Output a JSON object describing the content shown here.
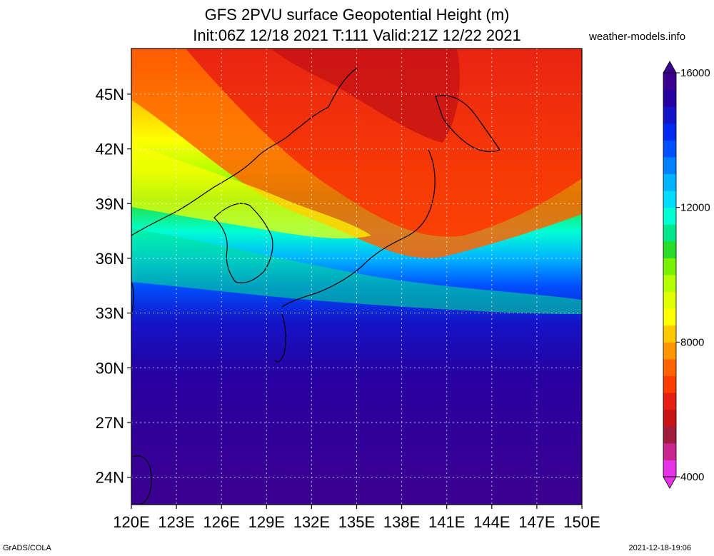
{
  "title_line1": "GFS 2PVU surface Geopotential Height (m)",
  "title_line2": "Init:06Z 12/18 2021 T:111 Valid:21Z 12/22 2021",
  "credit": "weather-models.info",
  "footer_left": "GrADS/COLA",
  "footer_right": "2021-12-18-19:06",
  "map": {
    "lon_range": [
      120,
      150
    ],
    "lat_range": [
      22.5,
      47.5
    ],
    "lon_ticks": [
      "120E",
      "123E",
      "126E",
      "129E",
      "132E",
      "135E",
      "138E",
      "141E",
      "144E",
      "147E",
      "150E"
    ],
    "lat_ticks": [
      "45N",
      "42N",
      "39N",
      "36N",
      "33N",
      "30N",
      "27N",
      "24N"
    ],
    "lon_tick_values": [
      120,
      123,
      126,
      129,
      132,
      135,
      138,
      141,
      144,
      147,
      150
    ],
    "lat_tick_values": [
      45,
      42,
      39,
      36,
      33,
      30,
      27,
      24
    ],
    "grid": true
  },
  "colorbar": {
    "min": 4000,
    "max": 16000,
    "labels": [
      "16000",
      "12000",
      "8000",
      "4000"
    ],
    "label_values": [
      16000,
      12000,
      8000,
      4000
    ],
    "colors": [
      "#e633e6",
      "#c8268c",
      "#a01e3c",
      "#c81414",
      "#e61e14",
      "#ff3c00",
      "#ff6400",
      "#ff9600",
      "#ffc800",
      "#ffff00",
      "#e1ff00",
      "#b4ff00",
      "#78f000",
      "#28dc28",
      "#00e68c",
      "#00ffd2",
      "#00dcff",
      "#00b4ff",
      "#0082ff",
      "#0050ff",
      "#0028f0",
      "#1414c8",
      "#2800a0",
      "#3c0090"
    ]
  }
}
